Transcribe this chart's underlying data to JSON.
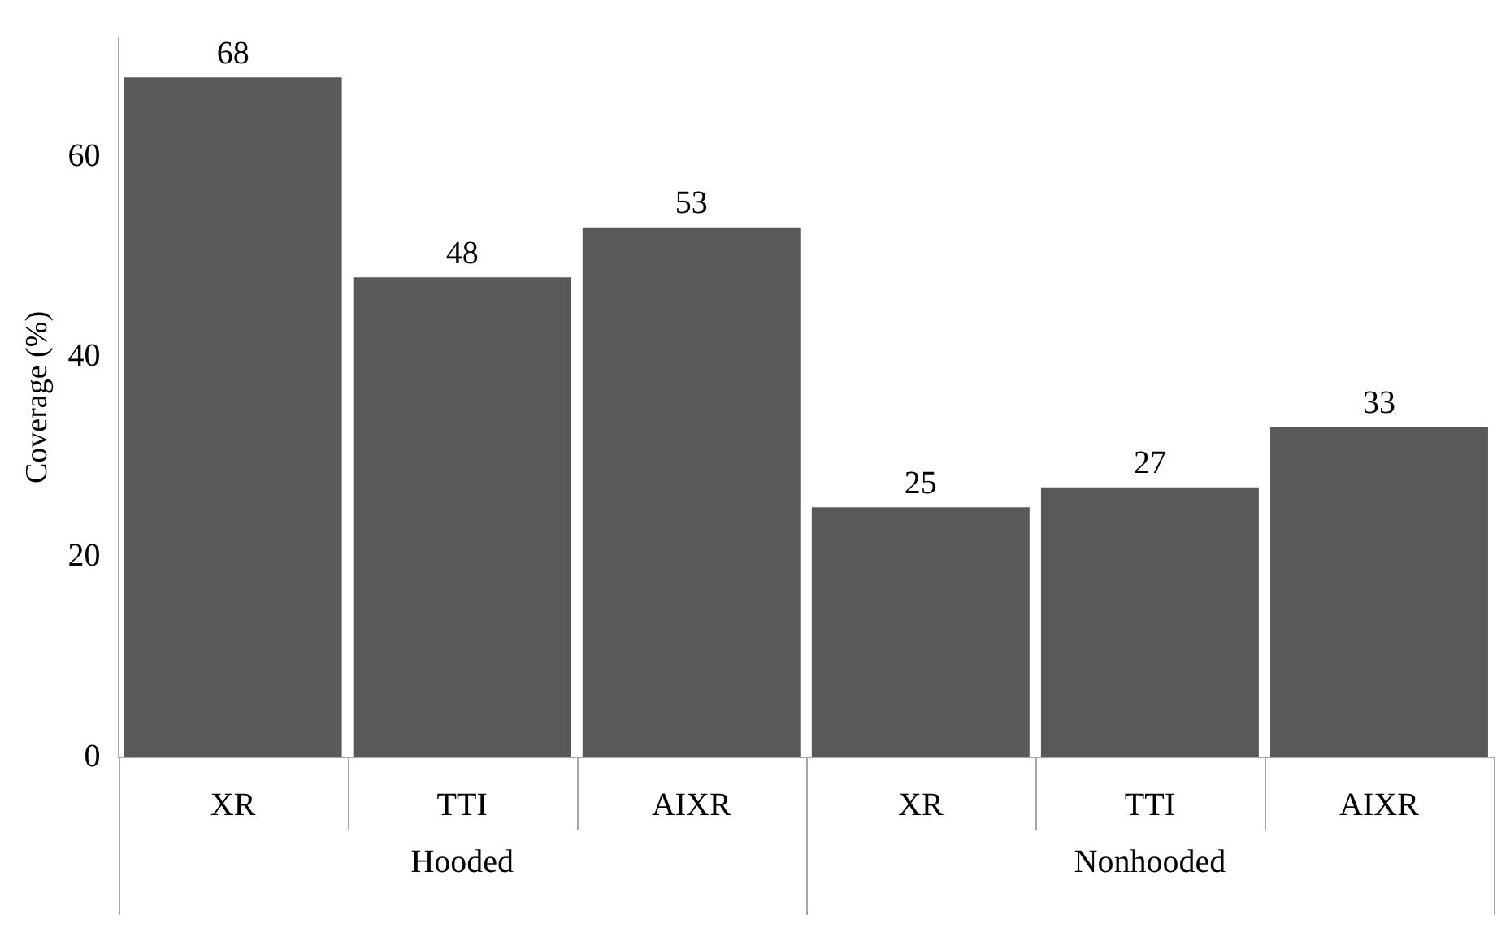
{
  "chart_data": {
    "type": "bar",
    "ylabel": "Coverage (%)",
    "categories": [
      "XR",
      "TTI",
      "AIXR",
      "XR",
      "TTI",
      "AIXR"
    ],
    "values": [
      68,
      48,
      53,
      25,
      27,
      33
    ],
    "color": "#595959",
    "ylim": [
      0,
      72
    ],
    "yticks": [
      0,
      20,
      40,
      60
    ],
    "data_labels": true,
    "grid": false,
    "legend": false,
    "annotations": [
      "Hooded",
      "Nonhooded"
    ]
  }
}
